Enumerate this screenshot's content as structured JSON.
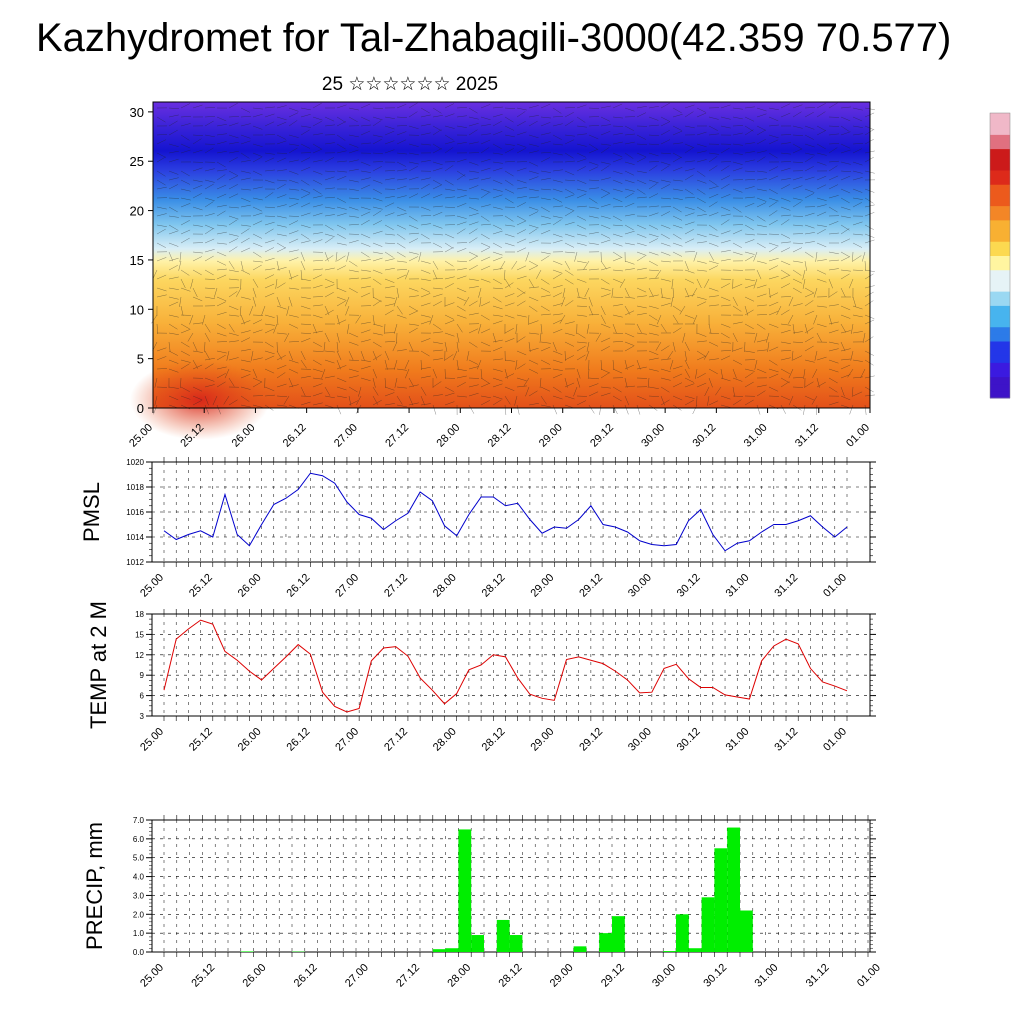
{
  "title": "Kazhydromet for Tal-Zhabagili-3000(42.359 70.577)",
  "subtitle": "25 ☆☆☆☆☆☆ 2025",
  "colors": {
    "pmsl_line": "#0000cc",
    "temp_line": "#dd0000",
    "precip_bar": "#00ee00",
    "colorbar": [
      "#3d13c8",
      "#4a2bd8",
      "#3a5be8",
      "#3c9ce8",
      "#84d4f4",
      "#d8eef6",
      "#fff7b0",
      "#ffd84a",
      "#f7a728",
      "#f06c18",
      "#e02a1a",
      "#c8101a",
      "#e8a0b0"
    ]
  },
  "chart_data": [
    {
      "type": "heatmap",
      "name": "cross-section",
      "x_tick_labels": [
        "25.00",
        "25.12",
        "26.00",
        "26.12",
        "27.00",
        "27.12",
        "28.00",
        "28.12",
        "29.00",
        "29.12",
        "30.00",
        "30.12",
        "31.00",
        "31.12",
        "01.00"
      ],
      "y_ticks": [
        0,
        5,
        10,
        15,
        20,
        25,
        30
      ],
      "ylim": [
        0,
        31
      ],
      "note_layers": "color bands top: violet, blue, light-blue, pale-yellow, yellow, orange"
    },
    {
      "type": "line",
      "ylabel": "PMSL",
      "ylim": [
        1012,
        1020
      ],
      "y_ticks": [
        1012,
        1014,
        1016,
        1018,
        1020
      ],
      "x_tick_labels": [
        "25.00",
        "25.12",
        "26.00",
        "26.12",
        "27.00",
        "27.12",
        "28.00",
        "28.12",
        "29.00",
        "29.12",
        "30.00",
        "30.12",
        "31.00",
        "31.12",
        "01.00"
      ],
      "values": [
        1014.5,
        1013.8,
        1014.2,
        1014.5,
        1014.0,
        1017.4,
        1014.2,
        1013.3,
        1015.0,
        1016.6,
        1017.1,
        1017.8,
        1019.1,
        1018.9,
        1018.3,
        1016.8,
        1015.8,
        1015.5,
        1014.6,
        1015.3,
        1015.9,
        1017.6,
        1016.9,
        1014.9,
        1014.1,
        1015.8,
        1017.2,
        1017.2,
        1016.5,
        1016.7,
        1015.4,
        1014.3,
        1014.8,
        1014.7,
        1015.4,
        1016.5,
        1015.0,
        1014.8,
        1014.4,
        1013.7,
        1013.4,
        1013.3,
        1013.4,
        1015.3,
        1016.2,
        1014.2,
        1012.9,
        1013.5,
        1013.7,
        1014.4,
        1015.0,
        1015.0,
        1015.3,
        1015.7,
        1014.8,
        1014.0,
        1014.8
      ]
    },
    {
      "type": "line",
      "ylabel": "TEMP at 2 M",
      "ylim": [
        3,
        18
      ],
      "y_ticks": [
        3,
        6,
        9,
        12,
        15,
        18
      ],
      "x_tick_labels": [
        "25.00",
        "25.12",
        "26.00",
        "26.12",
        "27.00",
        "27.12",
        "28.00",
        "28.12",
        "29.00",
        "29.12",
        "30.00",
        "30.12",
        "31.00",
        "31.12",
        "01.00"
      ],
      "values": [
        6.8,
        14.3,
        15.8,
        17.1,
        16.5,
        12.5,
        11.2,
        9.6,
        8.3,
        10.0,
        11.7,
        13.5,
        12.1,
        6.5,
        4.4,
        3.6,
        4.1,
        11.1,
        13.0,
        13.2,
        11.8,
        8.6,
        6.8,
        4.8,
        6.3,
        9.8,
        10.5,
        12.0,
        11.7,
        8.6,
        6.2,
        5.6,
        5.3,
        11.3,
        11.7,
        11.2,
        10.7,
        9.6,
        8.3,
        6.4,
        6.5,
        10.0,
        10.6,
        8.5,
        7.2,
        7.2,
        6.1,
        5.8,
        5.5,
        11.1,
        13.3,
        14.3,
        13.6,
        10.0,
        8.0,
        7.4,
        6.7
      ]
    },
    {
      "type": "bar",
      "ylabel": "PRECIP, mm",
      "ylim": [
        0,
        7
      ],
      "y_tick_labels": [
        "0.0",
        "1.0",
        "2.0",
        "3.0",
        "4.0",
        "5.0",
        "6.0",
        "7.0"
      ],
      "x_tick_labels": [
        "25.00",
        "25.12",
        "26.00",
        "26.12",
        "27.00",
        "27.12",
        "28.00",
        "28.12",
        "29.00",
        "29.12",
        "30.00",
        "30.12",
        "31.00",
        "31.12",
        "01.00"
      ],
      "values": [
        0,
        0,
        0,
        0,
        0,
        0,
        0.03,
        0,
        0,
        0,
        0.02,
        0,
        0,
        0,
        0,
        0,
        0,
        0,
        0,
        0,
        0,
        0.15,
        0.2,
        6.5,
        0.9,
        0,
        1.7,
        0.9,
        0,
        0,
        0,
        0,
        0.3,
        0,
        1.0,
        1.9,
        0,
        0,
        0,
        0.05,
        2.0,
        0.2,
        2.9,
        5.5,
        6.6,
        2.2,
        0,
        0,
        0,
        0,
        0,
        0,
        0,
        0,
        0,
        0
      ]
    }
  ]
}
